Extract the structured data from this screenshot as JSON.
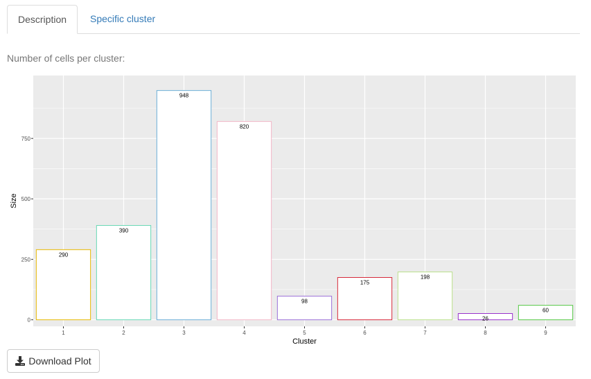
{
  "tabs": [
    {
      "label": "Description",
      "active": true
    },
    {
      "label": "Specific cluster",
      "active": false
    }
  ],
  "section_label": "Number of cells per cluster:",
  "download_button": {
    "label": "Download Plot",
    "icon": "download-icon"
  },
  "colors": {
    "panel_bg": "#EBEBEB",
    "grid": "#FFFFFF",
    "tab_link": "#337AB7"
  },
  "chart_data": {
    "type": "bar",
    "xlabel": "Cluster",
    "ylabel": "Size",
    "categories": [
      "1",
      "2",
      "3",
      "4",
      "5",
      "6",
      "7",
      "8",
      "9"
    ],
    "values": [
      290,
      390,
      948,
      820,
      98,
      175,
      198,
      26,
      60
    ],
    "data_labels": [
      "290",
      "390",
      "948",
      "820",
      "98",
      "175",
      "198",
      "26",
      "60"
    ],
    "bar_outline_colors": [
      "#E7B800",
      "#66D7B4",
      "#6BAED6",
      "#F2B6C6",
      "#9A6FD8",
      "#D62839",
      "#B9E08A",
      "#9932CC",
      "#55C845"
    ],
    "bar_fill": "#FFFFFF",
    "yticks": [
      0,
      250,
      500,
      750
    ],
    "ylim": [
      -27,
      1010
    ],
    "grid": true,
    "legend": "none"
  }
}
